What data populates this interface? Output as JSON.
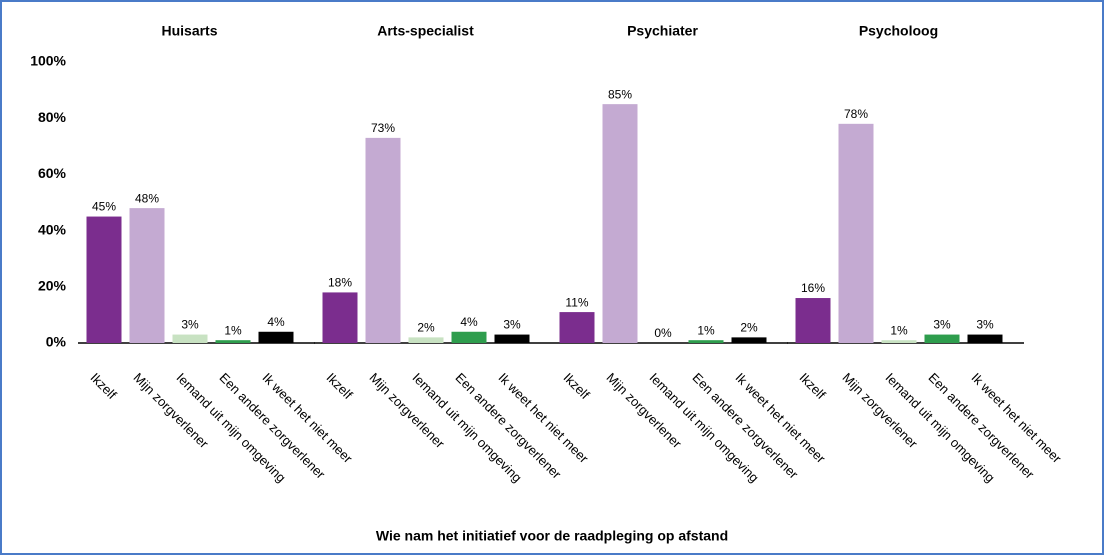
{
  "chart_data": {
    "type": "bar",
    "xlabel": "Wie nam het initiatief voor de raadpleging op afstand",
    "colors": [
      "#7b2d8e",
      "#c4aad2",
      "#c8e2c2",
      "#2e9d4d",
      "#000000"
    ],
    "ylim": [
      0,
      100
    ],
    "yticks": [
      {
        "value": 0,
        "label": "0%"
      },
      {
        "value": 20,
        "label": "20%"
      },
      {
        "value": 40,
        "label": "40%"
      },
      {
        "value": 60,
        "label": "60%"
      },
      {
        "value": 80,
        "label": "80%"
      },
      {
        "value": 100,
        "label": "100%"
      }
    ],
    "panels": [
      {
        "title": "Huisarts",
        "categories": [
          "Ikzelf",
          "Mijn zorgverlener",
          "Iemand uit mijn omgeving",
          "Een andere zorgverlener",
          "Ik weet het niet meer"
        ],
        "values": [
          45,
          48,
          3,
          1,
          4
        ],
        "value_labels": [
          "45%",
          "48%",
          "3%",
          "1%",
          "4%"
        ]
      },
      {
        "title": "Arts-specialist",
        "categories": [
          "Ikzelf",
          "Mijn zorgverlener",
          "Iemand uit mijn omgeving",
          "Een andere zorgverlener",
          "Ik weet het niet meer"
        ],
        "values": [
          18,
          73,
          2,
          4,
          3
        ],
        "value_labels": [
          "18%",
          "73%",
          "2%",
          "4%",
          "3%"
        ]
      },
      {
        "title": "Psychiater",
        "categories": [
          "Ikzelf",
          "Mijn zorgverlener",
          "Iemand uit mijn omgeving",
          "Een andere zorgverlener",
          "Ik weet het niet meer"
        ],
        "values": [
          11,
          85,
          0,
          1,
          2
        ],
        "value_labels": [
          "11%",
          "85%",
          "0%",
          "1%",
          "2%"
        ]
      },
      {
        "title": "Psycholoog",
        "categories": [
          "Ikzelf",
          "Mijn zorgverlener",
          "Iemand uit mijn omgeving",
          "Een andere zorgverlener",
          "Ik weet het niet meer"
        ],
        "values": [
          16,
          78,
          1,
          3,
          3
        ],
        "value_labels": [
          "16%",
          "78%",
          "1%",
          "3%",
          "3%"
        ]
      }
    ]
  }
}
